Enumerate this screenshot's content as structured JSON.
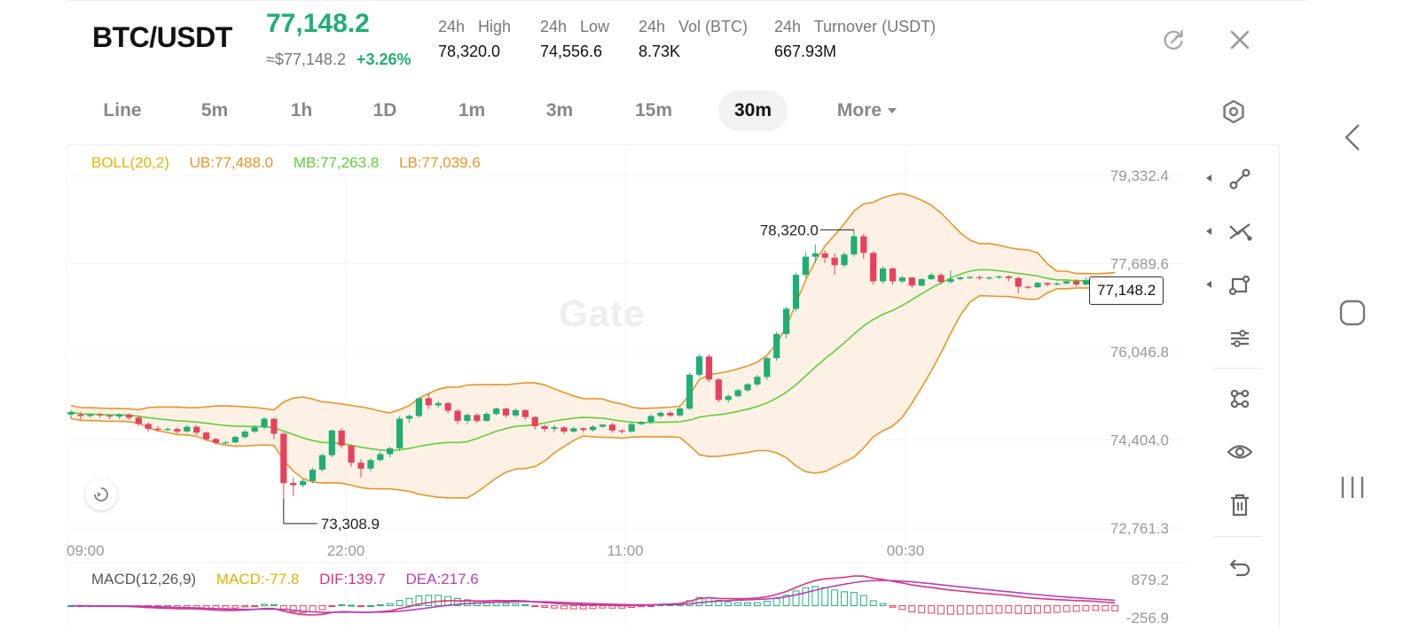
{
  "header": {
    "pair": "BTC/USDT",
    "last_price": "77,148.2",
    "approx_usd": "≈$77,148.2",
    "change_pct": "+3.26%",
    "stats": [
      {
        "label": "24h   High",
        "value": "78,320.0"
      },
      {
        "label": "24h   Low",
        "value": "74,556.6"
      },
      {
        "label": "24h   Vol (BTC)",
        "value": "8.73K"
      },
      {
        "label": "24h   Turnover (USDT)",
        "value": "667.93M"
      }
    ],
    "refresh_icon": "refresh-icon",
    "close_icon": "close-icon"
  },
  "tabs": [
    {
      "label": "Line",
      "active": false
    },
    {
      "label": "5m",
      "active": false
    },
    {
      "label": "1h",
      "active": false
    },
    {
      "label": "1D",
      "active": false
    },
    {
      "label": "1m",
      "active": false
    },
    {
      "label": "3m",
      "active": false
    },
    {
      "label": "15m",
      "active": false
    },
    {
      "label": "30m",
      "active": true
    },
    {
      "label": "More",
      "active": false
    }
  ],
  "settings_icon": "hexagon-settings-icon",
  "indicators": {
    "boll": {
      "name": "BOLL(20,2)",
      "ub": "UB:77,488.0",
      "mb": "MB:77,263.8",
      "lb": "LB:77,039.6"
    },
    "macd": {
      "name": "MACD(12,26,9)",
      "macd": "MACD:-77.8",
      "dif": "DIF:139.7",
      "dea": "DEA:217.6"
    }
  },
  "watermark": "Gate",
  "colors": {
    "up": "#1fae74",
    "down": "#e8415b",
    "boll_ub": "#e8952a",
    "boll_mb": "#5fcf3a",
    "boll_lb": "#e8952a",
    "band_fill": "#fdeee0",
    "macd_name": "#555555",
    "macd_value": "#e8b000",
    "dif": "#e0307a",
    "dea": "#b140c0"
  },
  "chart_data": {
    "type": "candlestick",
    "interval": "30m",
    "y_axis_labels": [
      "79,332.4",
      "77,689.6",
      "76,046.8",
      "74,404.0",
      "72,761.3"
    ],
    "ylim": [
      72761.3,
      79332.4
    ],
    "x_axis_labels": [
      "09:00",
      "22:00",
      "11:00",
      "00:30"
    ],
    "high_marker": "78,320.0",
    "low_marker": "73,308.9",
    "last_price_tag": "77,148.2",
    "candles": [
      [
        74877,
        74925,
        74800,
        74960
      ],
      [
        74875,
        74850,
        74780,
        74930
      ],
      [
        74852,
        74880,
        74820,
        74900
      ],
      [
        74880,
        74860,
        74820,
        74910
      ],
      [
        74860,
        74840,
        74790,
        74880
      ],
      [
        74840,
        74880,
        74800,
        74900
      ],
      [
        74878,
        74820,
        74780,
        74900
      ],
      [
        74820,
        74700,
        74660,
        74840
      ],
      [
        74702,
        74610,
        74560,
        74730
      ],
      [
        74612,
        74600,
        74560,
        74660
      ],
      [
        74600,
        74610,
        74570,
        74640
      ],
      [
        74608,
        74560,
        74520,
        74640
      ],
      [
        74562,
        74650,
        74540,
        74680
      ],
      [
        74648,
        74540,
        74500,
        74680
      ],
      [
        74542,
        74420,
        74380,
        74560
      ],
      [
        74422,
        74350,
        74320,
        74440
      ],
      [
        74352,
        74360,
        74320,
        74390
      ],
      [
        74360,
        74460,
        74340,
        74480
      ],
      [
        74458,
        74560,
        74430,
        74590
      ],
      [
        74560,
        74640,
        74530,
        74680
      ],
      [
        74638,
        74800,
        74600,
        74830
      ],
      [
        74798,
        74520,
        74420,
        74820
      ],
      [
        74520,
        73600,
        73308.9,
        74540
      ],
      [
        73602,
        73560,
        73360,
        73700
      ],
      [
        73562,
        73640,
        73520,
        73680
      ],
      [
        73640,
        73850,
        73600,
        73880
      ],
      [
        73850,
        74120,
        73820,
        74150
      ],
      [
        74120,
        74580,
        74080,
        74600
      ],
      [
        74578,
        74300,
        74250,
        74620
      ],
      [
        74300,
        73980,
        73900,
        74320
      ],
      [
        73980,
        73870,
        73700,
        74050
      ],
      [
        73870,
        74030,
        73820,
        74060
      ],
      [
        74030,
        74140,
        74000,
        74180
      ],
      [
        74140,
        74250,
        74080,
        74280
      ],
      [
        74250,
        74800,
        74200,
        74850
      ],
      [
        74800,
        74850,
        74720,
        74880
      ],
      [
        74850,
        75180,
        74820,
        75200
      ],
      [
        75180,
        75050,
        74980,
        75280
      ],
      [
        75048,
        75090,
        75000,
        75130
      ],
      [
        75090,
        74950,
        74900,
        75120
      ],
      [
        74948,
        74760,
        74700,
        74980
      ],
      [
        74760,
        74870,
        74700,
        74900
      ],
      [
        74868,
        74760,
        74720,
        74900
      ],
      [
        74760,
        74890,
        74740,
        74920
      ],
      [
        74888,
        74990,
        74860,
        75010
      ],
      [
        74988,
        74860,
        74820,
        75010
      ],
      [
        74860,
        74960,
        74830,
        74990
      ],
      [
        74960,
        74830,
        74780,
        74980
      ],
      [
        74830,
        74660,
        74600,
        74850
      ],
      [
        74660,
        74610,
        74560,
        74690
      ],
      [
        74610,
        74640,
        74550,
        74680
      ],
      [
        74638,
        74560,
        74520,
        74660
      ],
      [
        74560,
        74620,
        74540,
        74650
      ],
      [
        74620,
        74590,
        74540,
        74640
      ],
      [
        74590,
        74650,
        74560,
        74680
      ],
      [
        74650,
        74690,
        74630,
        74700
      ],
      [
        74690,
        74580,
        74540,
        74720
      ],
      [
        74580,
        74560,
        74520,
        74600
      ],
      [
        74560,
        74700,
        74540,
        74720
      ],
      [
        74698,
        74740,
        74680,
        74760
      ],
      [
        74740,
        74850,
        74700,
        74880
      ],
      [
        74850,
        74910,
        74820,
        74940
      ],
      [
        74908,
        74860,
        74830,
        74940
      ],
      [
        74860,
        74990,
        74830,
        75020
      ],
      [
        74988,
        75620,
        74960,
        75660
      ],
      [
        75620,
        75960,
        75580,
        76000
      ],
      [
        75958,
        75530,
        75480,
        76000
      ],
      [
        75530,
        75150,
        75100,
        75560
      ],
      [
        75150,
        75220,
        75100,
        75260
      ],
      [
        75220,
        75330,
        75200,
        75360
      ],
      [
        75330,
        75440,
        75300,
        75470
      ],
      [
        75438,
        75580,
        75400,
        75620
      ],
      [
        75578,
        75930,
        75520,
        75960
      ],
      [
        75928,
        76380,
        75880,
        76420
      ],
      [
        76378,
        76850,
        76300,
        76880
      ],
      [
        76848,
        77480,
        76800,
        77520
      ],
      [
        77478,
        77820,
        77420,
        77900
      ],
      [
        77818,
        77880,
        77700,
        78050
      ],
      [
        77880,
        77800,
        77700,
        77940
      ],
      [
        77800,
        77660,
        77480,
        77880
      ],
      [
        77660,
        77860,
        77620,
        77900
      ],
      [
        77860,
        78200,
        77820,
        78320
      ],
      [
        78198,
        77890,
        77780,
        78250
      ],
      [
        77890,
        77360,
        77300,
        77920
      ],
      [
        77360,
        77600,
        77320,
        77640
      ],
      [
        77598,
        77360,
        77300,
        77620
      ],
      [
        77360,
        77430,
        77330,
        77460
      ],
      [
        77430,
        77280,
        77240,
        77450
      ],
      [
        77280,
        77400,
        77260,
        77420
      ],
      [
        77400,
        77480,
        77380,
        77520
      ],
      [
        77478,
        77350,
        77300,
        77510
      ],
      [
        77350,
        77400,
        77320,
        77560
      ],
      [
        77400,
        77430,
        77380,
        77450
      ],
      [
        77430,
        77440,
        77400,
        77460
      ],
      [
        77440,
        77420,
        77380,
        77460
      ],
      [
        77420,
        77430,
        77390,
        77450
      ],
      [
        77430,
        77450,
        77410,
        77470
      ],
      [
        77450,
        77420,
        77360,
        77470
      ],
      [
        77420,
        77260,
        77130,
        77450
      ],
      [
        77260,
        77250,
        77220,
        77280
      ],
      [
        77250,
        77330,
        77230,
        77350
      ],
      [
        77328,
        77300,
        77260,
        77340
      ],
      [
        77300,
        77320,
        77280,
        77340
      ],
      [
        77320,
        77360,
        77300,
        77380
      ],
      [
        77360,
        77300,
        77260,
        77400
      ],
      [
        77300,
        77380,
        77280,
        77430
      ],
      [
        77378,
        77310,
        77270,
        77420
      ],
      [
        77310,
        77200,
        77170,
        77330
      ],
      [
        77200,
        77148.2,
        77120,
        77230
      ]
    ]
  }
}
